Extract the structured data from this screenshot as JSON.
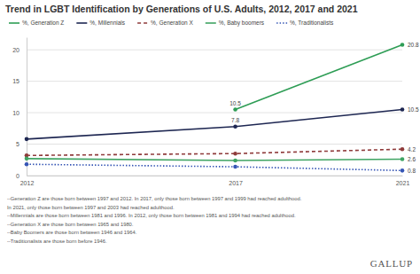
{
  "chart_data": {
    "type": "line",
    "title": "Trend in LGBT Identification by Generations of U.S. Adults, 2012, 2017 and 2021",
    "x": [
      2012,
      2017,
      2021
    ],
    "xlim": [
      2012,
      2021
    ],
    "xticks": [
      2012,
      2017,
      2021
    ],
    "ylim": [
      0,
      22
    ],
    "yticks": [
      0,
      5,
      10,
      15,
      20
    ],
    "grid": true,
    "legend": "top",
    "marker": "circle",
    "data_labels": true,
    "series": [
      {
        "name": "%, Generation Z",
        "color": "#2e9d55",
        "line_style": "solid",
        "values": [
          null,
          10.5,
          20.8
        ],
        "value_labels": [
          null,
          "10.5",
          "20.8"
        ]
      },
      {
        "name": "%, Millennials",
        "color": "#1e2752",
        "line_style": "solid",
        "values": [
          5.8,
          7.8,
          10.5
        ],
        "value_labels": [
          null,
          "7.8",
          "10.5"
        ]
      },
      {
        "name": "%, Generation X",
        "color": "#8f3b3b",
        "line_style": "dashed",
        "values": [
          3.2,
          3.5,
          4.2
        ],
        "value_labels": [
          null,
          null,
          "4.2"
        ]
      },
      {
        "name": "%, Baby boomers",
        "color": "#3fa463",
        "line_style": "solid",
        "values": [
          2.7,
          2.4,
          2.6
        ],
        "value_labels": [
          null,
          null,
          "2.6"
        ]
      },
      {
        "name": "%, Traditionalists",
        "color": "#3656b5",
        "line_style": "dotted",
        "values": [
          1.8,
          1.4,
          0.8
        ],
        "value_labels": [
          null,
          null,
          "0.8"
        ]
      }
    ],
    "notes": [
      "--Generation Z are those born between 1997 and 2012. In 2017, only those born between 1997 and 1999 had reached adulthood.",
      "In 2021, only those born between 1997 and 2003 had reached adulthood.",
      "--Millennials are those born between 1981 and 1996. In 2012, only those born between 1981 and 1994 had reached adulthood.",
      "--Generation X are those born between 1965 and 1980.",
      "--Baby Boomers are those born between 1946 and 1964.",
      "--Traditionalists are those born before 1946."
    ],
    "source": "GALLUP"
  }
}
